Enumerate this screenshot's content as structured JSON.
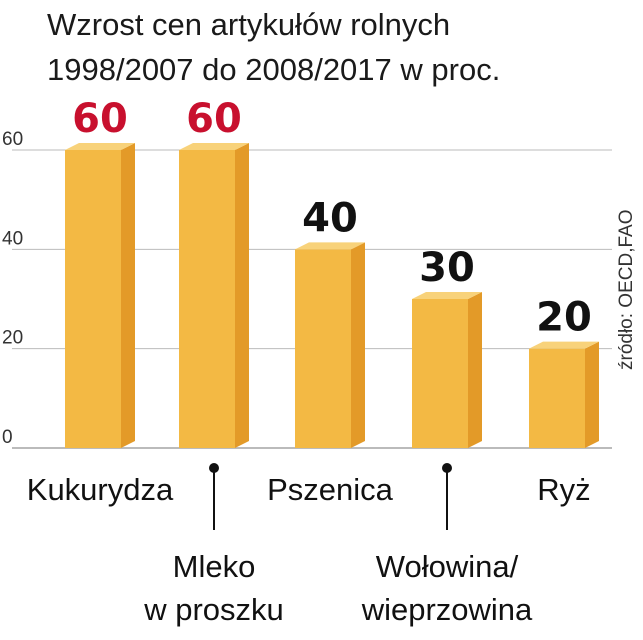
{
  "title_lines": [
    "Wzrost  cen artykułów rolnych",
    "1998/2007 do 2008/2017 w proc."
  ],
  "source": "źródło: OECD,FAO",
  "colors": {
    "bar_front": "#f3b944",
    "bar_side": "#e39a28",
    "bar_top": "#f8d27a",
    "highlight_value": "#c8102e",
    "normal_value": "#111111",
    "grid": "#bbbbbb"
  },
  "chart_data": {
    "type": "bar",
    "title": "Wzrost  cen artykułów rolnych 1998/2007 do 2008/2017 w proc.",
    "ylim": [
      0,
      60
    ],
    "yticks": [
      0,
      20,
      40,
      60
    ],
    "grid": true,
    "categories": [
      {
        "lines": [
          "Kukurydza"
        ],
        "value": 60,
        "value_label": "60",
        "highlight": true
      },
      {
        "lines": [
          "Mleko",
          "w  proszku"
        ],
        "value": 60,
        "value_label": "60",
        "highlight": true
      },
      {
        "lines": [
          "Pszenica"
        ],
        "value": 40,
        "value_label": "40",
        "highlight": false
      },
      {
        "lines": [
          "Wołowina/",
          "wieprzowina"
        ],
        "value": 30,
        "value_label": "30",
        "highlight": false
      },
      {
        "lines": [
          "Ryż"
        ],
        "value": 20,
        "value_label": "20",
        "highlight": false
      }
    ]
  }
}
